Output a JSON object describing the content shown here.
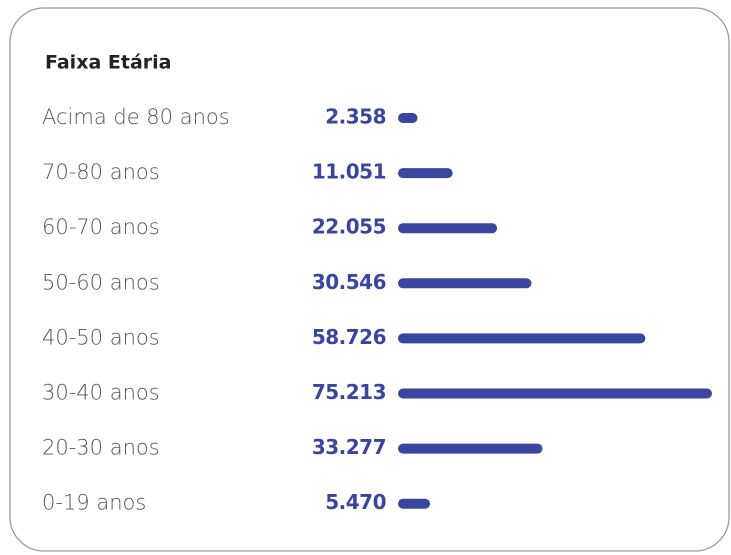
{
  "chart_data": {
    "type": "bar",
    "orientation": "horizontal",
    "title": "Faixa Etária",
    "categories": [
      "Acima de 80 anos",
      "70-80 anos",
      "60-70 anos",
      "50-60 anos",
      "40-50 anos",
      "30-40 anos",
      "20-30 anos",
      "0-19 anos"
    ],
    "values": [
      2358,
      11051,
      22055,
      30546,
      58726,
      75213,
      33277,
      5470
    ],
    "value_labels": [
      "2.358",
      "11.051",
      "22.055",
      "30.546",
      "58.726",
      "75.213",
      "33.277",
      "5.470"
    ],
    "color": "#3a45a0"
  }
}
